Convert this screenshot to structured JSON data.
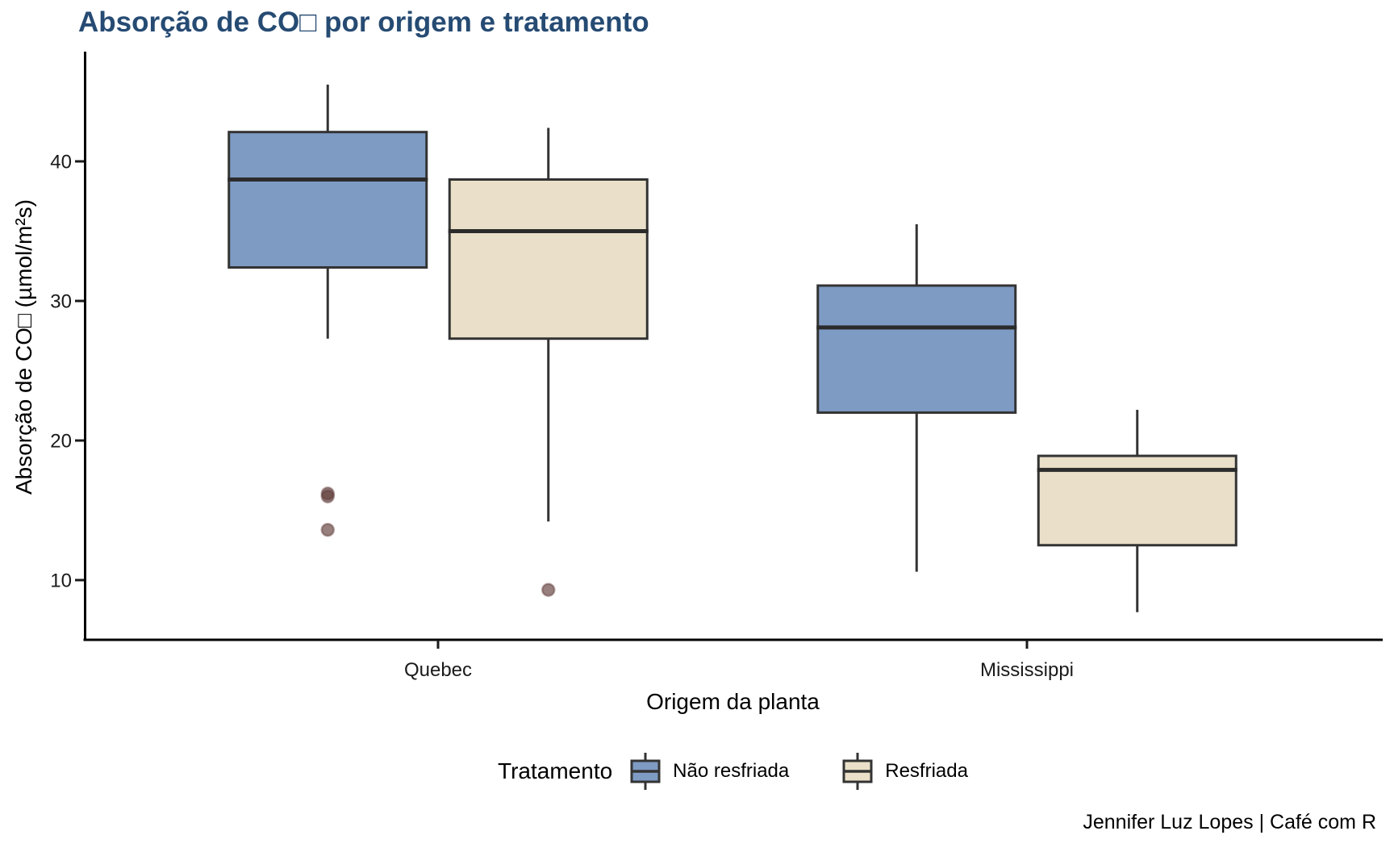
{
  "chart_data": {
    "type": "boxplot",
    "title": "Absorção de CO□ por origem e tratamento",
    "xlabel": "Origem da planta",
    "ylabel": "Absorção de CO□ (µmol/m²s)",
    "caption": "Jennifer Luz Lopes | Café com R",
    "categories": [
      "Quebec",
      "Mississippi"
    ],
    "y_ticks": [
      10,
      20,
      30,
      40
    ],
    "ylim": [
      5.7,
      47.6
    ],
    "grid": false,
    "legend_position": "bottom",
    "legend_title": "Tratamento",
    "title_color": "#264B73",
    "box_edge_color": "#333333",
    "outlier_color": "#5F3C39",
    "series": [
      {
        "name": "Não resfriada",
        "color": "#7E9BC4",
        "boxes": [
          {
            "category": "Quebec",
            "whisker_low": 27.3,
            "q1": 32.4,
            "median": 38.7,
            "q3": 42.1,
            "whisker_high": 45.5,
            "outliers": [
              16.2,
              16.0,
              13.6
            ]
          },
          {
            "category": "Mississippi",
            "whisker_low": 10.6,
            "q1": 22.0,
            "median": 28.1,
            "q3": 31.1,
            "whisker_high": 35.5,
            "outliers": []
          }
        ]
      },
      {
        "name": "Resfriada",
        "color": "#EAE0C9",
        "boxes": [
          {
            "category": "Quebec",
            "whisker_low": 14.2,
            "q1": 27.3,
            "median": 35.0,
            "q3": 38.7,
            "whisker_high": 42.4,
            "outliers": [
              9.3
            ]
          },
          {
            "category": "Mississippi",
            "whisker_low": 7.7,
            "q1": 12.5,
            "median": 17.9,
            "q3": 18.9,
            "whisker_high": 22.2,
            "outliers": []
          }
        ]
      }
    ]
  }
}
